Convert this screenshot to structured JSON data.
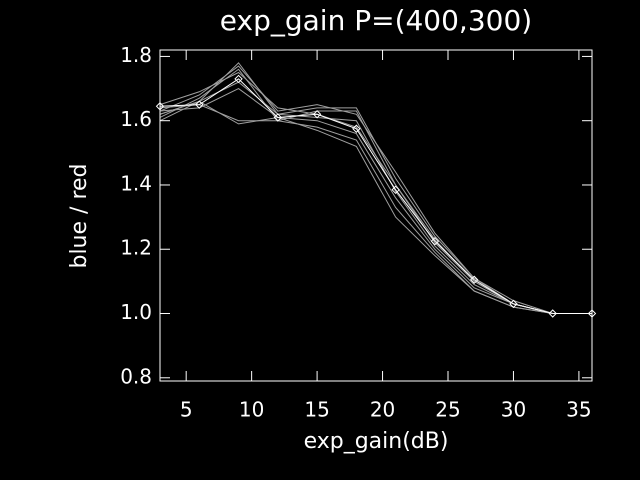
{
  "chart_data": {
    "type": "line",
    "title": "exp_gain P=(400,300)",
    "xlabel": "exp_gain(dB)",
    "ylabel": "blue / red",
    "x": [
      3,
      6,
      9,
      12,
      15,
      18,
      21,
      24,
      27,
      30,
      33,
      36
    ],
    "xlim": [
      3,
      36
    ],
    "xticks": [
      5,
      10,
      15,
      20,
      25,
      30,
      35
    ],
    "ylim": [
      0.79,
      1.82
    ],
    "yticks": [
      0.8,
      {
        "value": 1.0,
        "label": "1.0"
      },
      1.2,
      1.4,
      1.6,
      1.8
    ],
    "axis_color": "#ffffff",
    "background": "#000000",
    "series": [
      {
        "color": "#a0a0a0",
        "values": [
          1.62,
          1.66,
          1.78,
          1.62,
          1.64,
          1.64,
          1.42,
          1.24,
          1.11,
          1.03,
          1.0,
          1.0
        ]
      },
      {
        "color": "#a0a0a0",
        "values": [
          1.61,
          1.67,
          1.76,
          1.6,
          1.63,
          1.63,
          1.4,
          1.22,
          1.1,
          1.03,
          1.0,
          1.0
        ]
      },
      {
        "color": "#a0a0a0",
        "values": [
          1.63,
          1.68,
          1.77,
          1.63,
          1.65,
          1.62,
          1.44,
          1.25,
          1.11,
          1.04,
          1.0,
          1.0
        ]
      },
      {
        "color": "#a0a0a0",
        "values": [
          1.62,
          1.66,
          1.59,
          1.61,
          1.6,
          1.56,
          1.36,
          1.2,
          1.08,
          1.03,
          1.0,
          1.0
        ]
      },
      {
        "color": "#a0a0a0",
        "values": [
          1.64,
          1.65,
          1.6,
          1.6,
          1.58,
          1.54,
          1.33,
          1.19,
          1.07,
          1.02,
          1.0,
          1.0
        ]
      },
      {
        "color": "#a0a0a0",
        "values": [
          1.63,
          1.64,
          1.7,
          1.61,
          1.57,
          1.52,
          1.3,
          1.18,
          1.07,
          1.02,
          1.0,
          1.0
        ]
      },
      {
        "color": "#a0a0a0",
        "values": [
          1.6,
          1.66,
          1.72,
          1.62,
          1.61,
          1.6,
          1.38,
          1.21,
          1.09,
          1.03,
          1.0,
          1.0
        ]
      },
      {
        "color": "#a0a0a0",
        "values": [
          1.65,
          1.69,
          1.75,
          1.64,
          1.62,
          1.58,
          1.4,
          1.23,
          1.1,
          1.03,
          1.0,
          1.0
        ]
      },
      {
        "color": "#ffffff",
        "marker": "diamond",
        "values": [
          1.645,
          1.65,
          1.73,
          1.61,
          1.62,
          1.575,
          1.385,
          1.225,
          1.105,
          1.03,
          1.0,
          1.0
        ]
      }
    ]
  }
}
